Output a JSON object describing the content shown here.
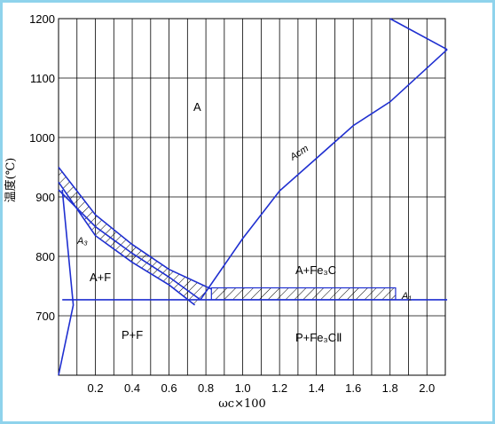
{
  "chart_data": {
    "type": "phase-diagram",
    "x_ticks": [
      "0.2",
      "0.4",
      "0.6",
      "0.8",
      "1.0",
      "1.2",
      "1.4",
      "1.6",
      "1.8",
      "2.0"
    ],
    "y_ticks": [
      "1200",
      "1100",
      "1000",
      "900",
      "800",
      "700"
    ],
    "xlabel": "ωc×100",
    "ylabel": "温度(℃)",
    "xlim": [
      0,
      2.1
    ],
    "ylim": [
      600,
      1200
    ],
    "grid": true,
    "regions": {
      "austenite": "A",
      "austenite_ferrite": "A+F",
      "austenite_cementite": "A+Fe₃C",
      "pearlite_ferrite": "P+F",
      "pearlite_cementite": "P+Fe₃CⅡ"
    },
    "curve_labels": {
      "a3": "A₃",
      "acm": "Acm",
      "a1": "A₁"
    },
    "lines": {
      "A3": [
        [
          0,
          912
        ],
        [
          0.2,
          850
        ],
        [
          0.4,
          805
        ],
        [
          0.6,
          765
        ],
        [
          0.77,
          727
        ]
      ],
      "A3_heating": [
        [
          0,
          950
        ],
        [
          0.2,
          870
        ],
        [
          0.4,
          820
        ],
        [
          0.6,
          778
        ],
        [
          0.83,
          745
        ]
      ],
      "A3_cooling": [
        [
          0,
          925
        ],
        [
          0.2,
          835
        ],
        [
          0.4,
          790
        ],
        [
          0.6,
          752
        ],
        [
          0.74,
          718
        ]
      ],
      "Acm": [
        [
          0.77,
          727
        ],
        [
          1.0,
          830
        ],
        [
          1.2,
          910
        ],
        [
          1.4,
          965
        ],
        [
          1.6,
          1020
        ],
        [
          1.8,
          1060
        ],
        [
          2.11,
          1148
        ]
      ],
      "A1": [
        [
          0.02,
          727
        ],
        [
          2.11,
          727
        ]
      ],
      "upper_right": [
        [
          1.8,
          1200
        ],
        [
          2.11,
          1148
        ],
        [
          2.11,
          1148
        ]
      ],
      "ferrite_solvus": [
        [
          0,
          600
        ],
        [
          0.08,
          718
        ],
        [
          0.02,
          912
        ]
      ]
    },
    "hatch_bands": [
      {
        "name": "A3_band",
        "top": "A3_heating",
        "bottom": "A3_cooling"
      },
      {
        "name": "A1_band",
        "x": [
          0.83,
          1.83
        ],
        "y": [
          727,
          747
        ]
      }
    ]
  }
}
